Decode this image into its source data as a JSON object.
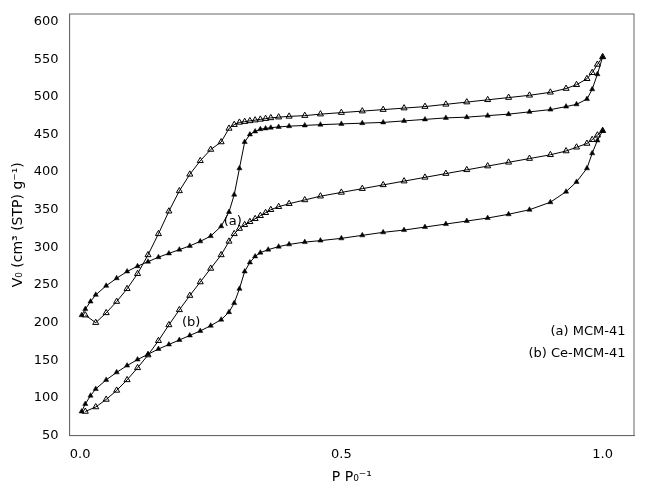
{
  "chart_data": {
    "type": "line",
    "x_label": "P P₀⁻¹",
    "y_label": "V₀ (cm³ (STP) g⁻¹)",
    "xlim": [
      -0.02,
      1.06
    ],
    "xticks": [
      {
        "value": 0,
        "label": "0.0"
      },
      0.5,
      {
        "value": 1,
        "label": "1.0"
      }
    ],
    "ylim": [
      50,
      610
    ],
    "yticks": [
      50,
      100,
      150,
      200,
      250,
      300,
      350,
      400,
      450,
      500,
      550,
      600
    ],
    "grid": false,
    "series": [
      {
        "color": "#000000",
        "marker": "triangle",
        "x": [
          0.003,
          0.01,
          0.02,
          0.03,
          0.05,
          0.07,
          0.09,
          0.11,
          0.13,
          0.15,
          0.17,
          0.19,
          0.21,
          0.23,
          0.25,
          0.27,
          0.285,
          0.295,
          0.305,
          0.315,
          0.325,
          0.335,
          0.345,
          0.355,
          0.365,
          0.38,
          0.4,
          0.43,
          0.46,
          0.5,
          0.54,
          0.58,
          0.62,
          0.66,
          0.7,
          0.74,
          0.78,
          0.82,
          0.86,
          0.9,
          0.93,
          0.95,
          0.97,
          0.98,
          0.99,
          1.0
        ],
        "values": [
          210,
          218,
          228,
          237,
          249,
          259,
          268,
          275,
          281,
          287,
          292,
          297,
          302,
          308,
          315,
          328,
          347,
          370,
          405,
          440,
          450,
          454,
          457,
          458,
          459,
          460,
          461,
          462,
          463,
          464,
          465,
          466,
          468,
          470,
          472,
          473,
          475,
          477,
          480,
          483,
          487,
          490,
          497,
          510,
          530,
          553
        ]
      },
      {
        "color": "#000000",
        "marker": "triangle_open",
        "x": [
          1.0,
          0.99,
          0.98,
          0.97,
          0.95,
          0.93,
          0.9,
          0.86,
          0.82,
          0.78,
          0.74,
          0.7,
          0.66,
          0.62,
          0.58,
          0.54,
          0.5,
          0.46,
          0.43,
          0.4,
          0.38,
          0.365,
          0.355,
          0.345,
          0.335,
          0.325,
          0.315,
          0.305,
          0.295,
          0.285,
          0.27,
          0.25,
          0.23,
          0.21,
          0.19,
          0.17,
          0.15,
          0.13,
          0.11,
          0.09,
          0.07,
          0.05,
          0.03,
          0.01
        ],
        "values": [
          553,
          543,
          532,
          524,
          516,
          511,
          506,
          502,
          499,
          496,
          493,
          490,
          487,
          485,
          483,
          481,
          479,
          477,
          475,
          474,
          473,
          472,
          471,
          470,
          469,
          468,
          467,
          466,
          463,
          458,
          440,
          430,
          415,
          397,
          375,
          348,
          318,
          290,
          265,
          245,
          228,
          213,
          200,
          210
        ]
      },
      {
        "color": "#000000",
        "marker": "triangle",
        "x": [
          0.003,
          0.01,
          0.02,
          0.03,
          0.05,
          0.07,
          0.09,
          0.11,
          0.13,
          0.15,
          0.17,
          0.19,
          0.21,
          0.23,
          0.25,
          0.27,
          0.285,
          0.295,
          0.305,
          0.315,
          0.325,
          0.335,
          0.345,
          0.36,
          0.38,
          0.4,
          0.43,
          0.46,
          0.5,
          0.54,
          0.58,
          0.62,
          0.66,
          0.7,
          0.74,
          0.78,
          0.82,
          0.86,
          0.9,
          0.93,
          0.95,
          0.97,
          0.98,
          0.99,
          1.0
        ],
        "values": [
          82,
          92,
          103,
          112,
          124,
          134,
          143,
          151,
          158,
          165,
          171,
          177,
          183,
          189,
          196,
          204,
          214,
          226,
          245,
          268,
          280,
          288,
          293,
          297,
          301,
          304,
          307,
          309,
          312,
          316,
          320,
          323,
          327,
          331,
          335,
          339,
          344,
          350,
          360,
          374,
          387,
          405,
          425,
          442,
          455
        ]
      },
      {
        "color": "#000000",
        "marker": "triangle_open",
        "x": [
          1.0,
          0.99,
          0.98,
          0.97,
          0.95,
          0.93,
          0.9,
          0.86,
          0.82,
          0.78,
          0.74,
          0.7,
          0.66,
          0.62,
          0.58,
          0.54,
          0.5,
          0.46,
          0.43,
          0.4,
          0.38,
          0.365,
          0.355,
          0.345,
          0.335,
          0.325,
          0.315,
          0.305,
          0.295,
          0.285,
          0.27,
          0.25,
          0.23,
          0.21,
          0.19,
          0.17,
          0.15,
          0.13,
          0.11,
          0.09,
          0.07,
          0.05,
          0.03,
          0.01
        ],
        "values": [
          455,
          449,
          443,
          438,
          433,
          428,
          423,
          418,
          413,
          408,
          403,
          398,
          393,
          388,
          383,
          378,
          373,
          368,
          363,
          358,
          354,
          350,
          346,
          342,
          338,
          334,
          330,
          325,
          318,
          308,
          290,
          272,
          254,
          236,
          217,
          197,
          176,
          157,
          140,
          124,
          110,
          98,
          88,
          82
        ]
      }
    ],
    "annotations": [
      {
        "text": "(a)",
        "x": 0.275,
        "y": 330
      },
      {
        "text": "(b)",
        "x": 0.195,
        "y": 195
      },
      {
        "text": "(a) MCM-41"
      },
      {
        "text": "(b) Ce-MCM-41"
      }
    ]
  }
}
